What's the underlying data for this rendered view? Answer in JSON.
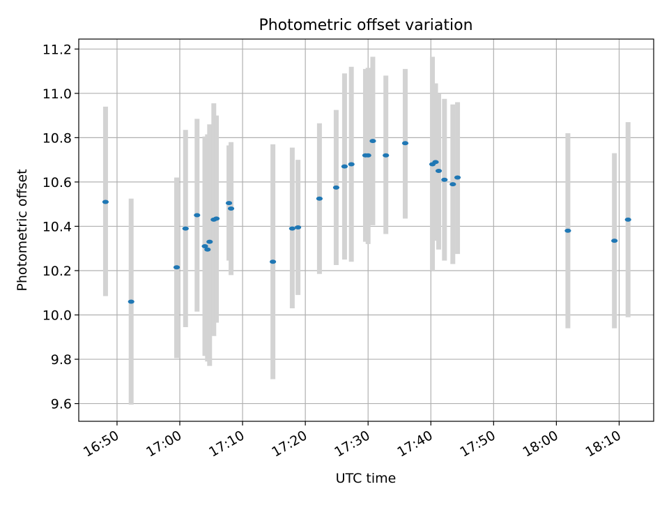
{
  "chart_data": {
    "type": "scatter",
    "title": "Photometric offset variation",
    "xlabel": "UTC time",
    "ylabel": "Photometric offset",
    "x_axis": {
      "kind": "time",
      "min": "16:43:54",
      "max": "18:15:30",
      "ticks": [
        "16:50",
        "17:00",
        "17:10",
        "17:20",
        "17:30",
        "17:40",
        "17:50",
        "18:00",
        "18:10"
      ]
    },
    "y_axis": {
      "min": 9.52,
      "max": 11.245,
      "ticks": [
        9.6,
        9.8,
        10.0,
        10.2,
        10.4,
        10.6,
        10.8,
        11.0,
        11.2
      ],
      "tick_labels": [
        "9.6",
        "9.8",
        "10.0",
        "10.2",
        "10.4",
        "10.6",
        "10.8",
        "11.0",
        "11.2"
      ]
    },
    "grid": true,
    "series": [
      {
        "marker": "ellipse",
        "color": "#1f77b4",
        "errorbar_color": "#d3d3d3",
        "points": [
          {
            "x": "16:48:10",
            "y": 10.51,
            "ylow": 10.085,
            "yhigh": 10.94
          },
          {
            "x": "16:52:15",
            "y": 10.06,
            "ylow": 9.595,
            "yhigh": 10.525
          },
          {
            "x": "16:59:30",
            "y": 10.215,
            "ylow": 9.805,
            "yhigh": 10.62
          },
          {
            "x": "17:00:55",
            "y": 10.39,
            "ylow": 9.945,
            "yhigh": 10.835
          },
          {
            "x": "17:02:45",
            "y": 10.45,
            "ylow": 10.015,
            "yhigh": 10.885
          },
          {
            "x": "17:04:00",
            "y": 10.31,
            "ylow": 9.815,
            "yhigh": 10.805
          },
          {
            "x": "17:04:25",
            "y": 10.295,
            "ylow": 9.79,
            "yhigh": 10.815
          },
          {
            "x": "17:04:45",
            "y": 10.33,
            "ylow": 9.77,
            "yhigh": 10.86
          },
          {
            "x": "17:05:25",
            "y": 10.43,
            "ylow": 9.905,
            "yhigh": 10.955
          },
          {
            "x": "17:05:50",
            "y": 10.435,
            "ylow": 9.965,
            "yhigh": 10.9
          },
          {
            "x": "17:07:50",
            "y": 10.505,
            "ylow": 10.245,
            "yhigh": 10.765
          },
          {
            "x": "17:08:10",
            "y": 10.48,
            "ylow": 10.18,
            "yhigh": 10.78
          },
          {
            "x": "17:14:50",
            "y": 10.24,
            "ylow": 9.71,
            "yhigh": 10.77
          },
          {
            "x": "17:17:55",
            "y": 10.39,
            "ylow": 10.03,
            "yhigh": 10.755
          },
          {
            "x": "17:18:50",
            "y": 10.395,
            "ylow": 10.09,
            "yhigh": 10.7
          },
          {
            "x": "17:22:15",
            "y": 10.525,
            "ylow": 10.185,
            "yhigh": 10.865
          },
          {
            "x": "17:24:55",
            "y": 10.575,
            "ylow": 10.225,
            "yhigh": 10.925
          },
          {
            "x": "17:26:15",
            "y": 10.67,
            "ylow": 10.25,
            "yhigh": 11.09
          },
          {
            "x": "17:27:20",
            "y": 10.68,
            "ylow": 10.24,
            "yhigh": 11.12
          },
          {
            "x": "17:29:35",
            "y": 10.72,
            "ylow": 10.33,
            "yhigh": 11.11
          },
          {
            "x": "17:30:00",
            "y": 10.72,
            "ylow": 10.32,
            "yhigh": 11.115
          },
          {
            "x": "17:30:45",
            "y": 10.785,
            "ylow": 10.405,
            "yhigh": 11.165
          },
          {
            "x": "17:32:50",
            "y": 10.72,
            "ylow": 10.365,
            "yhigh": 11.08
          },
          {
            "x": "17:35:55",
            "y": 10.775,
            "ylow": 10.435,
            "yhigh": 11.11
          },
          {
            "x": "17:40:15",
            "y": 10.68,
            "ylow": 10.2,
            "yhigh": 11.165
          },
          {
            "x": "17:40:45",
            "y": 10.69,
            "ylow": 10.335,
            "yhigh": 11.045
          },
          {
            "x": "17:41:15",
            "y": 10.65,
            "ylow": 10.295,
            "yhigh": 11.0
          },
          {
            "x": "17:42:10",
            "y": 10.61,
            "ylow": 10.245,
            "yhigh": 10.975
          },
          {
            "x": "17:43:30",
            "y": 10.59,
            "ylow": 10.23,
            "yhigh": 10.95
          },
          {
            "x": "17:44:15",
            "y": 10.62,
            "ylow": 10.275,
            "yhigh": 10.96
          },
          {
            "x": "18:01:50",
            "y": 10.38,
            "ylow": 9.94,
            "yhigh": 10.82
          },
          {
            "x": "18:09:15",
            "y": 10.335,
            "ylow": 9.94,
            "yhigh": 10.73
          },
          {
            "x": "18:11:25",
            "y": 10.43,
            "ylow": 9.99,
            "yhigh": 10.87
          }
        ]
      }
    ]
  }
}
